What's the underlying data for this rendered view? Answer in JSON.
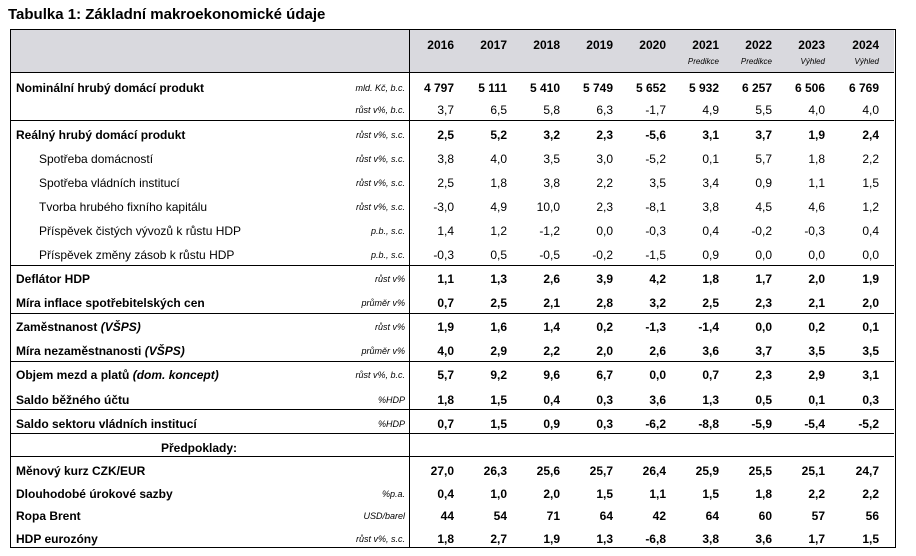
{
  "title": "Tabulka 1: Základní makroekonomické údaje",
  "years": [
    "2016",
    "2017",
    "2018",
    "2019",
    "2020",
    "2021",
    "2022",
    "2023",
    "2024"
  ],
  "year_notes": [
    "",
    "",
    "",
    "",
    "",
    "Predikce",
    "Predikce",
    "Výhled",
    "Výhled"
  ],
  "rows": [
    {
      "label": "Nominální hrubý domácí produkt",
      "unit": "mld. Kč, b.c.",
      "values": [
        "4 797",
        "5 111",
        "5 410",
        "5 749",
        "5 652",
        "5 932",
        "6 257",
        "6 506",
        "6 769"
      ]
    },
    {
      "label": "",
      "unit": "růst v%, b.c.",
      "values": [
        "3,7",
        "6,5",
        "5,8",
        "6,3",
        "-1,7",
        "4,9",
        "5,5",
        "4,0",
        "4,0"
      ]
    },
    {
      "label": "Reálný hrubý domácí produkt",
      "unit": "růst v%, s.c.",
      "values": [
        "2,5",
        "5,2",
        "3,2",
        "2,3",
        "-5,6",
        "3,1",
        "3,7",
        "1,9",
        "2,4"
      ]
    },
    {
      "label": "Spotřeba domácností",
      "unit": "růst v%, s.c.",
      "values": [
        "3,8",
        "4,0",
        "3,5",
        "3,0",
        "-5,2",
        "0,1",
        "5,7",
        "1,8",
        "2,2"
      ]
    },
    {
      "label": "Spotřeba vládních institucí",
      "unit": "růst v%, s.c.",
      "values": [
        "2,5",
        "1,8",
        "3,8",
        "2,2",
        "3,5",
        "3,4",
        "0,9",
        "1,1",
        "1,5"
      ]
    },
    {
      "label": "Tvorba hrubého fixního kapitálu",
      "unit": "růst v%, s.c.",
      "values": [
        "-3,0",
        "4,9",
        "10,0",
        "2,3",
        "-8,1",
        "3,8",
        "4,5",
        "4,6",
        "1,2"
      ]
    },
    {
      "label": "Příspěvek čistých vývozů k růstu HDP",
      "unit": "p.b., s.c.",
      "values": [
        "1,4",
        "1,2",
        "-1,2",
        "0,0",
        "-0,3",
        "0,4",
        "-0,2",
        "-0,3",
        "0,4"
      ]
    },
    {
      "label": "Příspěvek změny zásob k růstu HDP",
      "unit": "p.b., s.c.",
      "values": [
        "-0,3",
        "0,5",
        "-0,5",
        "-0,2",
        "-1,5",
        "0,9",
        "0,0",
        "0,0",
        "0,0"
      ]
    },
    {
      "label": "Deflátor HDP",
      "unit": "růst v%",
      "values": [
        "1,1",
        "1,3",
        "2,6",
        "3,9",
        "4,2",
        "1,8",
        "1,7",
        "2,0",
        "1,9"
      ]
    },
    {
      "label": "Míra inflace spotřebitelských cen",
      "unit": "průměr v%",
      "values": [
        "0,7",
        "2,5",
        "2,1",
        "2,8",
        "3,2",
        "2,5",
        "2,3",
        "2,1",
        "2,0"
      ]
    },
    {
      "label": "Zaměstnanost",
      "label_italic": " (VŠPS)",
      "unit": "růst v%",
      "values": [
        "1,9",
        "1,6",
        "1,4",
        "0,2",
        "-1,3",
        "-1,4",
        "0,0",
        "0,2",
        "0,1"
      ]
    },
    {
      "label": "Míra nezaměstnanosti",
      "label_italic": " (VŠPS)",
      "unit": "průměr v%",
      "values": [
        "4,0",
        "2,9",
        "2,2",
        "2,0",
        "2,6",
        "3,6",
        "3,7",
        "3,5",
        "3,5"
      ]
    },
    {
      "label": "Objem mezd a platů",
      "label_italic": " (dom. koncept)",
      "unit": "růst v%, b.c.",
      "values": [
        "5,7",
        "9,2",
        "9,6",
        "6,7",
        "0,0",
        "0,7",
        "2,3",
        "2,9",
        "3,1"
      ]
    },
    {
      "label": "Saldo běžného účtu",
      "unit": "%HDP",
      "values": [
        "1,8",
        "1,5",
        "0,4",
        "0,3",
        "3,6",
        "1,3",
        "0,5",
        "0,1",
        "0,3"
      ]
    },
    {
      "label": "Saldo sektoru vládních institucí",
      "unit": "%HDP",
      "values": [
        "0,7",
        "1,5",
        "0,9",
        "0,3",
        "-6,2",
        "-8,8",
        "-5,9",
        "-5,4",
        "-5,2"
      ]
    },
    {
      "label": "Předpoklady:",
      "unit": "",
      "values": [
        "",
        "",
        "",
        "",
        "",
        "",
        "",
        "",
        ""
      ]
    },
    {
      "label": "Měnový kurz CZK/EUR",
      "unit": "",
      "values": [
        "27,0",
        "26,3",
        "25,6",
        "25,7",
        "26,4",
        "25,9",
        "25,5",
        "25,1",
        "24,7"
      ]
    },
    {
      "label": "Dlouhodobé úrokové sazby",
      "unit": "%p.a.",
      "values": [
        "0,4",
        "1,0",
        "2,0",
        "1,5",
        "1,1",
        "1,5",
        "1,8",
        "2,2",
        "2,2"
      ]
    },
    {
      "label": "Ropa Brent",
      "unit": "USD/barel",
      "values": [
        "44",
        "54",
        "71",
        "64",
        "42",
        "64",
        "60",
        "57",
        "56"
      ]
    },
    {
      "label": "HDP eurozóny",
      "unit": "růst v%, s.c.",
      "values": [
        "1,8",
        "2,7",
        "1,9",
        "1,3",
        "-6,8",
        "3,8",
        "3,6",
        "1,7",
        "1,5"
      ]
    }
  ]
}
